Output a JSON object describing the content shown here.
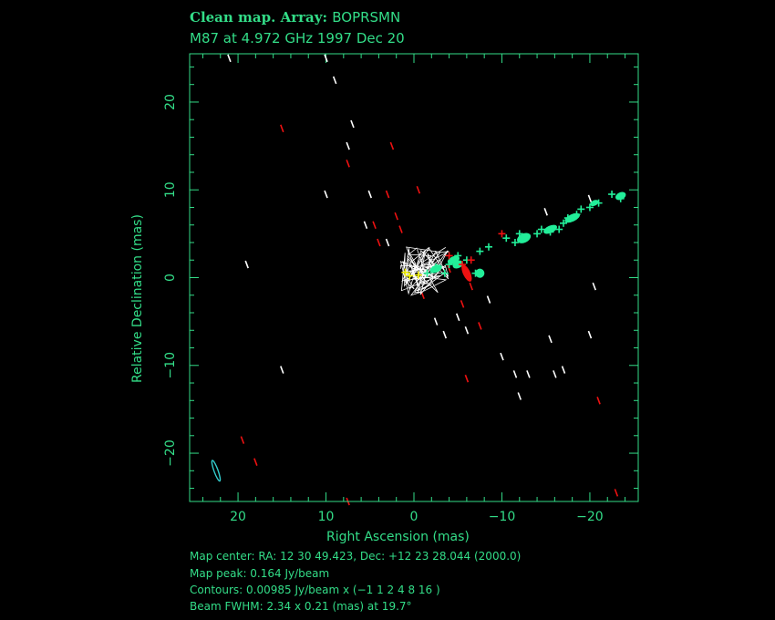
{
  "header": {
    "title_main": "Clean map.",
    "title_array_label": "Array:",
    "title_array_value": "BOPRSMN",
    "subtitle": "M87 at 4.972 GHz 1997 Dec 20"
  },
  "footer": {
    "map_center": "Map center:  RA: 12 30 49.423,  Dec: +12 23 28.044 (2000.0)",
    "map_peak": "Map peak: 0.164 Jy/beam",
    "contours": "Contours: 0.00985 Jy/beam x (−1 1 2 4 8 16 )",
    "beam": "Beam FWHM: 2.34 x 0.21 (mas) at 19.7°"
  },
  "chart_data": {
    "type": "scatter",
    "xlabel": "Right Ascension  (mas)",
    "ylabel": "Relative Declination  (mas)",
    "xlim": [
      25.5,
      -25.5
    ],
    "ylim": [
      -25.5,
      25.5
    ],
    "x_ticks": [
      20,
      10,
      0,
      -10,
      -20
    ],
    "y_ticks": [
      20,
      10,
      0,
      -10,
      -20
    ],
    "x_tick_labels": [
      "20",
      "10",
      "0",
      "−10",
      "−20"
    ],
    "y_tick_labels": [
      "20",
      "10",
      "0",
      "−10",
      "−20"
    ],
    "colors": {
      "axes": "#33dd88",
      "positive_components": "#22ee99",
      "negative_components": "#ee1111",
      "contours": "#ffffff",
      "peak_components": "#eeee00",
      "beam": "#33cccc"
    },
    "series": [
      {
        "name": "",
        "marker": "plus",
        "color": "#22ee99",
        "x": [
          -1.5,
          -2.5,
          -3.5,
          -4.0,
          -5.0,
          -6.0,
          -7.0,
          -7.5,
          -8.5,
          -10.5,
          -11.5,
          -12,
          -14,
          -14.5,
          -15.5,
          -16.5,
          -17,
          -17.5,
          -18.5,
          -19,
          -20,
          -21,
          -22.5,
          -23.5
        ],
        "y": [
          0.5,
          1.2,
          0.5,
          1.5,
          2.5,
          2.0,
          0.5,
          3.0,
          3.5,
          4.5,
          4.0,
          5.0,
          5.0,
          5.5,
          5.2,
          5.5,
          6.2,
          6.8,
          7.2,
          7.8,
          8.0,
          8.5,
          9.5,
          9.0
        ]
      },
      {
        "name": "",
        "marker": "plus",
        "color": "#ee1111",
        "x": [
          -4.0,
          -5.5,
          -6.5,
          -10
        ],
        "y": [
          2.5,
          1.5,
          2.0,
          5.0
        ]
      },
      {
        "name": "",
        "marker": "plus",
        "color": "#eeee00",
        "x": [
          0.5,
          1.0,
          -0.5
        ],
        "y": [
          0.2,
          0.6,
          0.3
        ]
      }
    ],
    "beam_marker": {
      "x": 22.5,
      "y": -22
    }
  }
}
